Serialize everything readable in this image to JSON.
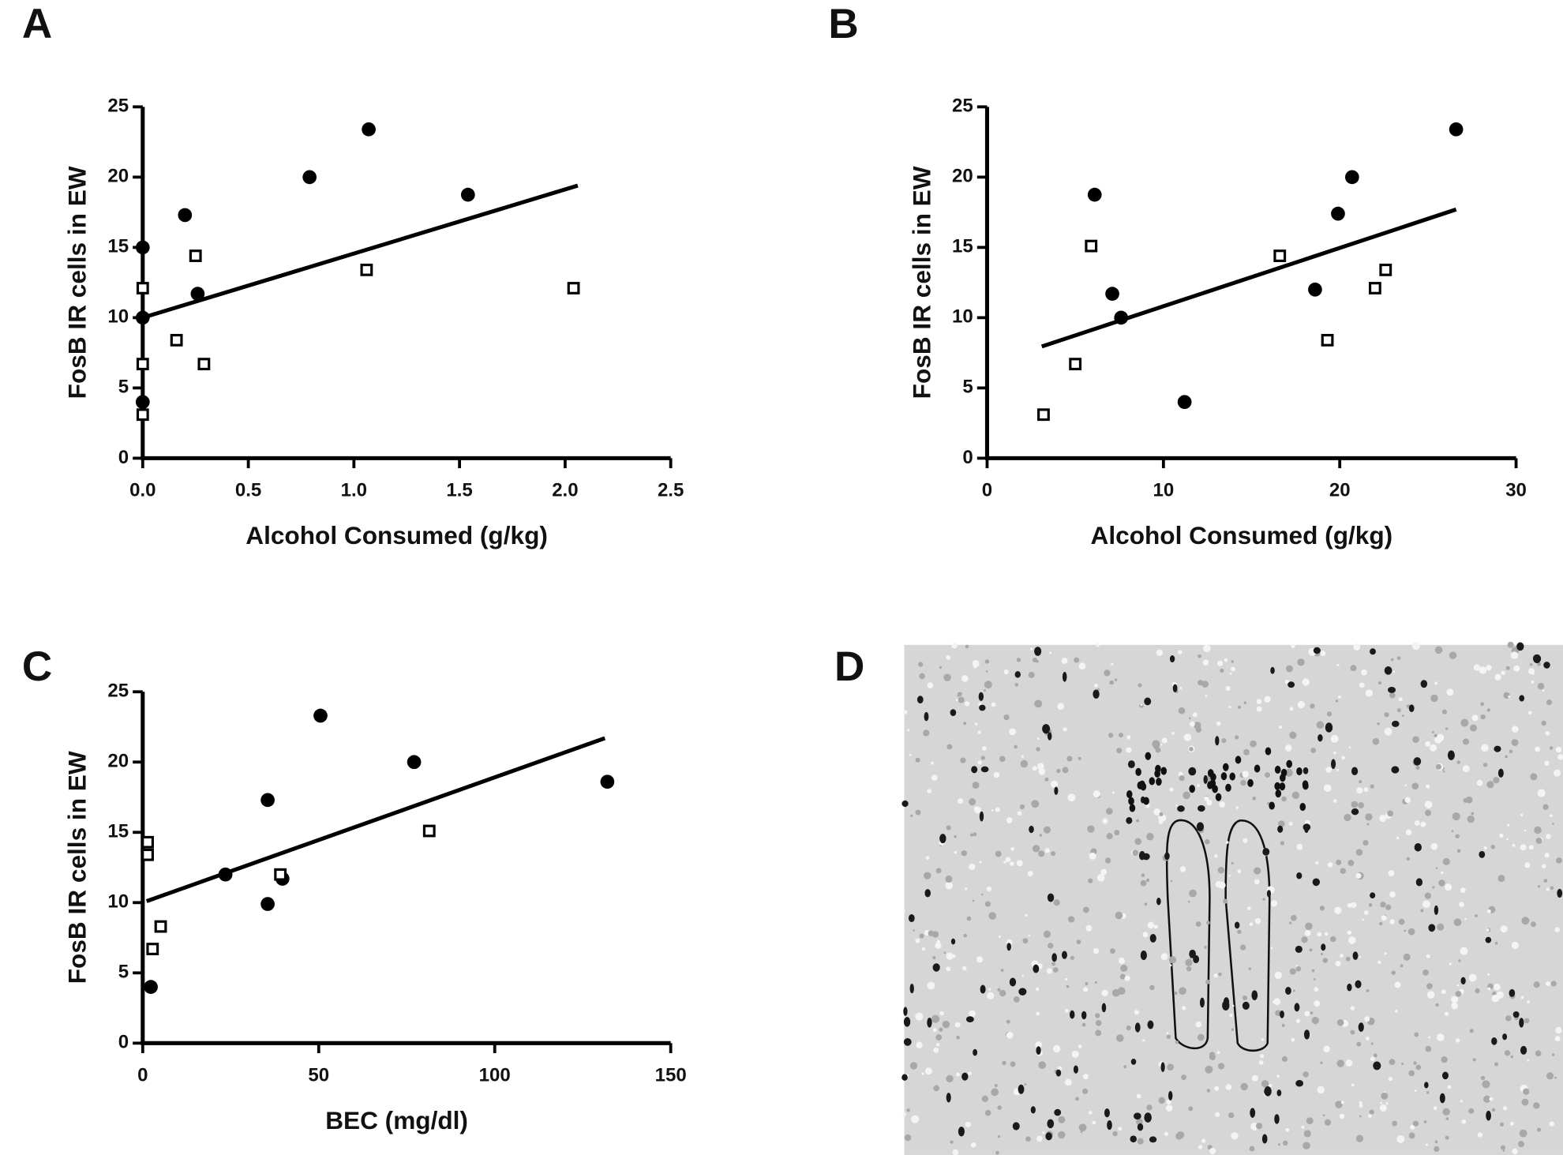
{
  "chart_data": [
    {
      "type": "scatter",
      "panel_label": "A",
      "x_label": "Alcohol Consumed (g/kg)",
      "y_label": "FosB IR cells in EW",
      "xlim": [
        0,
        2.5
      ],
      "ylim": [
        0,
        25
      ],
      "xticks": [
        {
          "value": 0,
          "label": "0.0"
        },
        {
          "value": 0.5,
          "label": "0.5"
        },
        {
          "value": 1,
          "label": "1.0"
        },
        {
          "value": 1.5,
          "label": "1.5"
        },
        {
          "value": 2,
          "label": "2.0"
        },
        {
          "value": 2.5,
          "label": "2.5"
        }
      ],
      "yticks": [
        0,
        5,
        10,
        15,
        20,
        25
      ],
      "series": [
        {
          "marker": "circle",
          "color": "#000000",
          "x": [
            0,
            0.2,
            0.79,
            1.07,
            1.54,
            0.26,
            0,
            0
          ],
          "values": [
            15.0,
            17.3,
            20.0,
            23.4,
            18.75,
            11.7,
            10.0,
            4.0
          ]
        },
        {
          "marker": "square",
          "color": "#000000",
          "x": [
            0,
            0.25,
            1.06,
            2.04,
            0.16,
            0.29,
            0,
            0
          ],
          "values": [
            12.1,
            14.4,
            13.4,
            12.1,
            8.4,
            6.7,
            6.7,
            3.1
          ]
        }
      ],
      "fit_line": {
        "color": "#000000",
        "x": [
          0,
          2.06
        ],
        "values": [
          10.0,
          19.4
        ]
      }
    },
    {
      "type": "scatter",
      "panel_label": "B",
      "x_label": "Alcohol Consumed (g/kg)",
      "y_label": "FosB IR cells in EW",
      "xlim": [
        0,
        30
      ],
      "ylim": [
        0,
        25
      ],
      "xticks": [
        0,
        10,
        20,
        30
      ],
      "yticks": [
        0,
        5,
        10,
        15,
        20,
        25
      ],
      "series": [
        {
          "marker": "circle",
          "color": "#000000",
          "x": [
            6.1,
            7.1,
            7.6,
            11.2,
            18.6,
            19.9,
            20.7,
            26.6
          ],
          "values": [
            18.75,
            11.7,
            10.0,
            4.0,
            12.0,
            17.4,
            20.0,
            23.4
          ]
        },
        {
          "marker": "square",
          "color": "#000000",
          "x": [
            3.2,
            5.0,
            5.9,
            16.6,
            19.3,
            22.0,
            22.6
          ],
          "values": [
            3.1,
            6.7,
            15.1,
            14.4,
            8.4,
            12.1,
            13.4
          ]
        }
      ],
      "fit_line": {
        "color": "#000000",
        "x": [
          3.1,
          26.6
        ],
        "values": [
          7.95,
          17.7
        ]
      }
    },
    {
      "type": "scatter",
      "panel_label": "C",
      "x_label": "BEC (mg/dl)",
      "y_label": "FosB IR cells in EW",
      "xlim": [
        0,
        150
      ],
      "ylim": [
        0,
        25
      ],
      "xticks": [
        0,
        50,
        100,
        150
      ],
      "yticks": [
        0,
        5,
        10,
        15,
        20,
        25
      ],
      "series": [
        {
          "marker": "circle",
          "color": "#000000",
          "x": [
            35.5,
            50.5,
            77.1,
            132,
            23.5,
            35.5,
            39.7,
            2.3
          ],
          "values": [
            17.3,
            23.3,
            20.0,
            18.6,
            12.0,
            9.9,
            11.7,
            4.0
          ]
        },
        {
          "marker": "square",
          "color": "#000000",
          "x": [
            1.4,
            1.4,
            39.1,
            81.4,
            5.1,
            2.8
          ],
          "values": [
            14.3,
            13.4,
            12.0,
            15.1,
            8.3,
            6.7
          ]
        }
      ],
      "fit_line": {
        "color": "#000000",
        "x": [
          1.1,
          131.3
        ],
        "values": [
          10.1,
          21.7
        ]
      }
    }
  ],
  "image_panel": {
    "panel_label": "D"
  }
}
